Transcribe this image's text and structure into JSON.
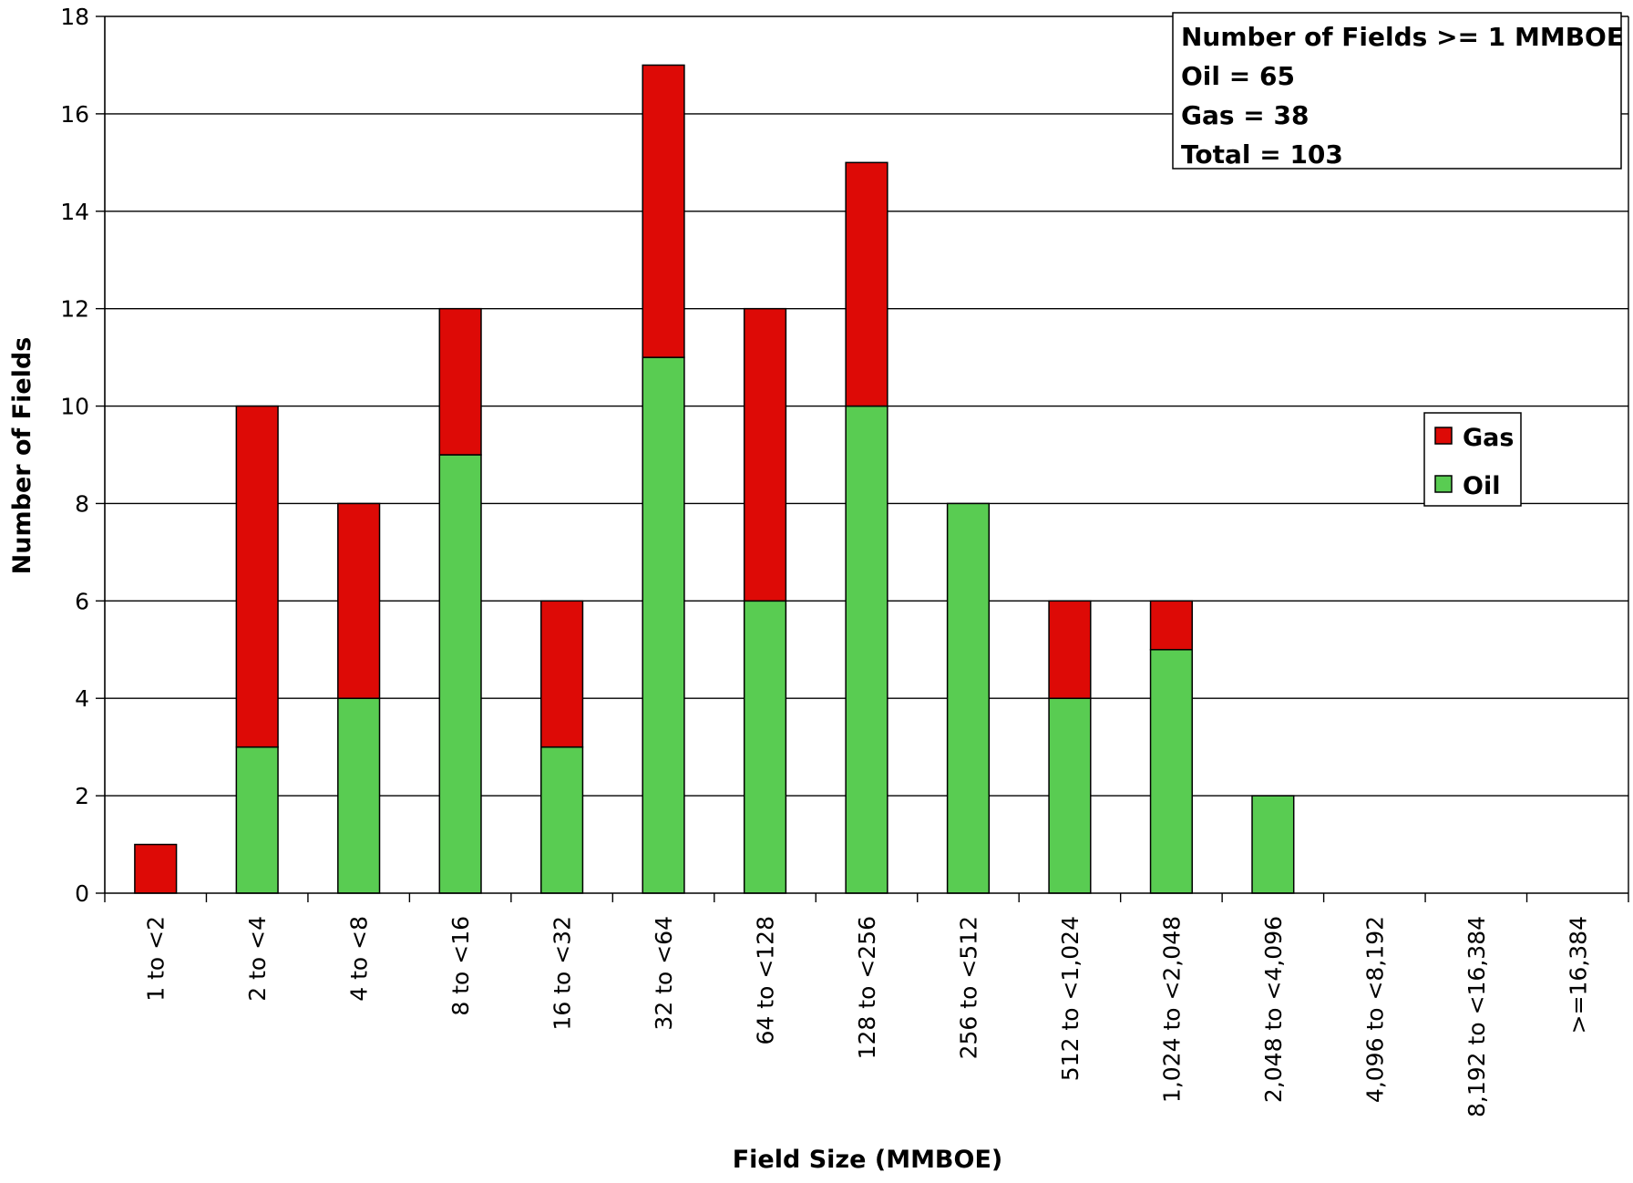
{
  "chart_data": {
    "type": "bar",
    "stacked": true,
    "categories": [
      "1 to <2",
      "2 to <4",
      "4 to <8",
      "8 to <16",
      "16 to <32",
      "32 to <64",
      "64 to <128",
      "128 to <256",
      "256 to <512",
      "512 to <1,024",
      "1,024 to <2,048",
      "2,048 to <4,096",
      "4,096 to <8,192",
      "8,192 to <16,384",
      ">=16,384"
    ],
    "series": [
      {
        "name": "Oil",
        "color": "#59cc52",
        "values": [
          0,
          3,
          4,
          9,
          3,
          11,
          6,
          10,
          8,
          4,
          5,
          2,
          0,
          0,
          0
        ]
      },
      {
        "name": "Gas",
        "color": "#dd0a06",
        "values": [
          1,
          7,
          4,
          3,
          3,
          6,
          6,
          5,
          0,
          2,
          1,
          0,
          0,
          0,
          0
        ]
      }
    ],
    "xlabel": "Field Size (MMBOE)",
    "ylabel": "Number of Fields",
    "ylim": [
      0,
      18
    ],
    "yticks": [
      0,
      2,
      4,
      6,
      8,
      10,
      12,
      14,
      16,
      18
    ],
    "grid": true,
    "legend": {
      "placement": "right",
      "items": [
        {
          "label": "Gas",
          "color": "#dd0a06"
        },
        {
          "label": "Oil",
          "color": "#59cc52"
        }
      ]
    },
    "annotation": [
      "Number of Fields >= 1 MMBOE",
      "Oil = 65",
      "Gas = 38",
      "Total = 103"
    ]
  }
}
